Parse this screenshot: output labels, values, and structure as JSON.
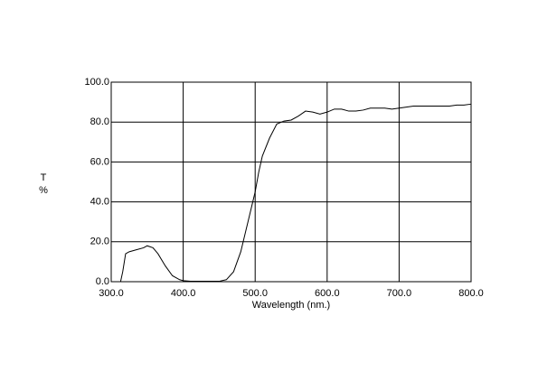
{
  "chart_data": {
    "type": "line",
    "xlabel": "Wavelength (nm.)",
    "ylabel": [
      "T",
      "%"
    ],
    "xlim": [
      300,
      800
    ],
    "ylim": [
      0,
      100
    ],
    "xticks": [
      {
        "value": 300,
        "label": "300.0"
      },
      {
        "value": 400,
        "label": "400.0"
      },
      {
        "value": 500,
        "label": "500.0"
      },
      {
        "value": 600,
        "label": "600.0"
      },
      {
        "value": 700,
        "label": "700.0"
      },
      {
        "value": 800,
        "label": "800.0"
      }
    ],
    "yticks": [
      {
        "value": 0,
        "label": "0.0"
      },
      {
        "value": 20,
        "label": "20.0"
      },
      {
        "value": 40,
        "label": "40.0"
      },
      {
        "value": 60,
        "label": "60.0"
      },
      {
        "value": 80,
        "label": "80.0"
      },
      {
        "value": 100,
        "label": "100.0"
      }
    ],
    "grid": true,
    "color": "#000000",
    "x": [
      313,
      316,
      320,
      325,
      335,
      345,
      350,
      358,
      365,
      375,
      385,
      395,
      400,
      410,
      450,
      460,
      470,
      480,
      490,
      500,
      505,
      510,
      520,
      530,
      540,
      550,
      560,
      570,
      580,
      590,
      600,
      610,
      620,
      630,
      640,
      650,
      660,
      670,
      680,
      690,
      700,
      710,
      720,
      730,
      740,
      750,
      760,
      770,
      780,
      790,
      800
    ],
    "values": [
      0,
      5,
      14,
      15,
      16,
      17,
      18,
      17,
      14,
      8,
      3,
      1,
      0.5,
      0.2,
      0.2,
      1,
      5,
      15,
      30,
      45,
      55,
      63,
      72,
      79,
      80.5,
      81,
      83,
      85.5,
      85,
      84,
      85,
      86.5,
      86.5,
      85.5,
      85.5,
      86,
      87,
      87,
      87,
      86.5,
      87,
      87.5,
      88,
      88,
      88,
      88,
      88,
      88,
      88.5,
      88.5,
      89
    ]
  }
}
